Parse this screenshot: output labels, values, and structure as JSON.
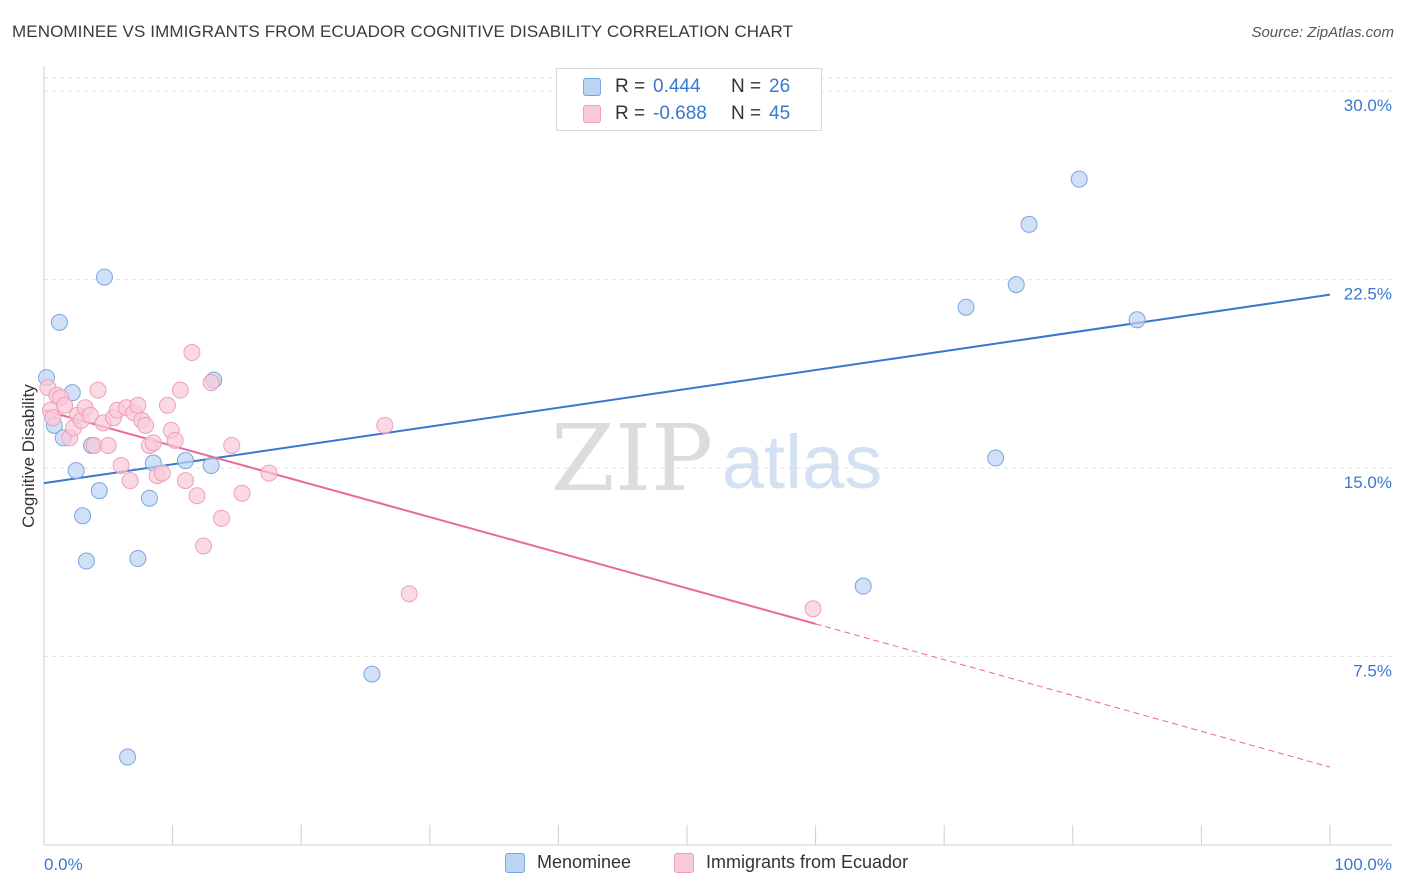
{
  "header": {
    "title": "MENOMINEE VS IMMIGRANTS FROM ECUADOR COGNITIVE DISABILITY CORRELATION CHART",
    "source": "Source: ZipAtlas.com"
  },
  "watermark": {
    "zip": "ZIP",
    "atlas": "atlas"
  },
  "legend": {
    "rows": [
      {
        "r_label": "R =",
        "r_value": "0.444",
        "n_label": "N =",
        "n_value": "26",
        "fill": "#bcd4f4",
        "stroke": "#7aa6e0"
      },
      {
        "r_label": "R =",
        "r_value": "-0.688",
        "n_label": "N =",
        "n_value": "45",
        "fill": "#f9c9d8",
        "stroke": "#eea0ba"
      }
    ]
  },
  "bottom_legend": {
    "items": [
      {
        "label": "Menominee",
        "fill": "#bcd4f4",
        "stroke": "#7aa6e0"
      },
      {
        "label": "Immigrants from Ecuador",
        "fill": "#f9c9d8",
        "stroke": "#eea0ba"
      }
    ]
  },
  "chart_data": {
    "type": "scatter",
    "title": "MENOMINEE VS IMMIGRANTS FROM ECUADOR COGNITIVE DISABILITY CORRELATION CHART",
    "xlabel": "",
    "ylabel": "Cognitive Disability",
    "xlim": [
      0,
      100
    ],
    "ylim": [
      0,
      31
    ],
    "x_tick_labels": [
      {
        "value": 0,
        "label": "0.0%"
      },
      {
        "value": 100,
        "label": "100.0%"
      }
    ],
    "y_tick_labels": [
      {
        "value": 7.5,
        "label": "7.5%"
      },
      {
        "value": 15,
        "label": "15.0%"
      },
      {
        "value": 22.5,
        "label": "22.5%"
      },
      {
        "value": 30,
        "label": "30.0%"
      }
    ],
    "x_minor_ticks": [
      0,
      10,
      20,
      30,
      40,
      50,
      60,
      70,
      80,
      90,
      100
    ],
    "grid": true,
    "series": [
      {
        "name": "Menominee",
        "color": "#3a78d0",
        "fill": "#bcd4f4",
        "stroke": "#7aa6e0",
        "points": [
          [
            0.2,
            18.6
          ],
          [
            0.8,
            16.7
          ],
          [
            1.2,
            20.8
          ],
          [
            1.5,
            16.2
          ],
          [
            2.2,
            18.0
          ],
          [
            2.5,
            14.9
          ],
          [
            3.0,
            13.1
          ],
          [
            3.3,
            11.3
          ],
          [
            3.7,
            15.9
          ],
          [
            4.3,
            14.1
          ],
          [
            4.7,
            22.6
          ],
          [
            7.3,
            11.4
          ],
          [
            8.2,
            13.8
          ],
          [
            8.5,
            15.2
          ],
          [
            11.0,
            15.3
          ],
          [
            13.0,
            15.1
          ],
          [
            13.2,
            18.5
          ],
          [
            25.5,
            6.8
          ],
          [
            6.5,
            3.5
          ],
          [
            63.7,
            10.3
          ],
          [
            71.7,
            21.4
          ],
          [
            74.0,
            15.4
          ],
          [
            75.6,
            22.3
          ],
          [
            76.6,
            24.7
          ],
          [
            80.5,
            26.5
          ],
          [
            85.0,
            20.9
          ]
        ],
        "trend": {
          "x": [
            0,
            100
          ],
          "y": [
            14.4,
            21.9
          ]
        }
      },
      {
        "name": "Immigrants from Ecuador",
        "color": "#e8699a",
        "fill": "#f9c9d8",
        "stroke": "#eea0ba",
        "points": [
          [
            0.3,
            18.2
          ],
          [
            0.5,
            17.3
          ],
          [
            0.7,
            17.0
          ],
          [
            1.0,
            17.9
          ],
          [
            1.3,
            17.8
          ],
          [
            1.6,
            17.5
          ],
          [
            2.0,
            16.2
          ],
          [
            2.3,
            16.6
          ],
          [
            2.6,
            17.1
          ],
          [
            2.9,
            16.9
          ],
          [
            3.2,
            17.4
          ],
          [
            3.6,
            17.1
          ],
          [
            3.9,
            15.9
          ],
          [
            4.2,
            18.1
          ],
          [
            4.6,
            16.8
          ],
          [
            5.0,
            15.9
          ],
          [
            5.4,
            17.0
          ],
          [
            5.7,
            17.3
          ],
          [
            6.0,
            15.1
          ],
          [
            6.4,
            17.4
          ],
          [
            6.7,
            14.5
          ],
          [
            7.0,
            17.2
          ],
          [
            7.3,
            17.5
          ],
          [
            7.6,
            16.9
          ],
          [
            7.9,
            16.7
          ],
          [
            8.2,
            15.9
          ],
          [
            8.5,
            16.0
          ],
          [
            8.8,
            14.7
          ],
          [
            9.2,
            14.8
          ],
          [
            9.6,
            17.5
          ],
          [
            9.9,
            16.5
          ],
          [
            10.2,
            16.1
          ],
          [
            10.6,
            18.1
          ],
          [
            11.0,
            14.5
          ],
          [
            11.5,
            19.6
          ],
          [
            11.9,
            13.9
          ],
          [
            12.4,
            11.9
          ],
          [
            13.0,
            18.4
          ],
          [
            13.8,
            13.0
          ],
          [
            14.6,
            15.9
          ],
          [
            15.4,
            14.0
          ],
          [
            17.5,
            14.8
          ],
          [
            26.5,
            16.7
          ],
          [
            28.4,
            10.0
          ],
          [
            59.8,
            9.4
          ]
        ],
        "trend": {
          "x": [
            0,
            60
          ],
          "y": [
            17.3,
            8.8
          ]
        },
        "trend_dashed": {
          "x": [
            60,
            100
          ],
          "y": [
            8.8,
            3.1
          ]
        }
      }
    ]
  }
}
